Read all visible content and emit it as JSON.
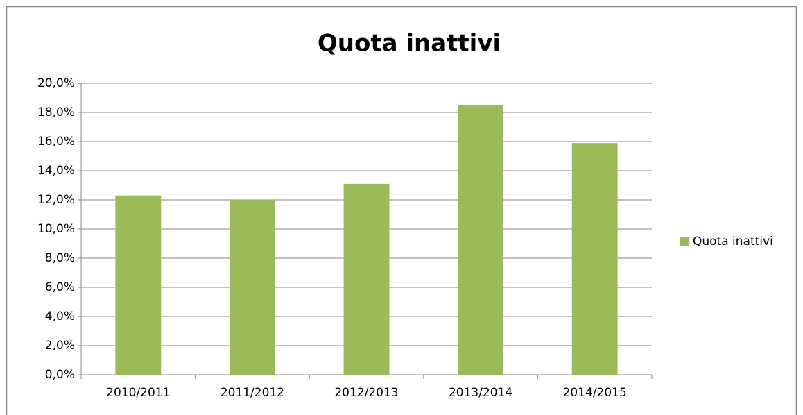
{
  "chart_data": {
    "type": "bar",
    "title": "Quota inattivi",
    "categories": [
      "2010/2011",
      "2011/2012",
      "2012/2013",
      "2013/2014",
      "2014/2015"
    ],
    "series": [
      {
        "name": "Quota inattivi",
        "color": "#9bbb59",
        "values": [
          12.3,
          12.0,
          13.1,
          18.5,
          15.9
        ]
      }
    ],
    "ylim": [
      0,
      20
    ],
    "yticks": [
      {
        "value": 0,
        "label": "0,0%"
      },
      {
        "value": 2,
        "label": "2,0%"
      },
      {
        "value": 4,
        "label": "4,0%"
      },
      {
        "value": 6,
        "label": "6,0%"
      },
      {
        "value": 8,
        "label": "8,0%"
      },
      {
        "value": 10,
        "label": "10,0%"
      },
      {
        "value": 12,
        "label": "12,0%"
      },
      {
        "value": 14,
        "label": "14,0%"
      },
      {
        "value": 16,
        "label": "16,0%"
      },
      {
        "value": 18,
        "label": "18,0%"
      },
      {
        "value": 20,
        "label": "20,0%"
      }
    ],
    "grid": true,
    "legend": "right"
  }
}
